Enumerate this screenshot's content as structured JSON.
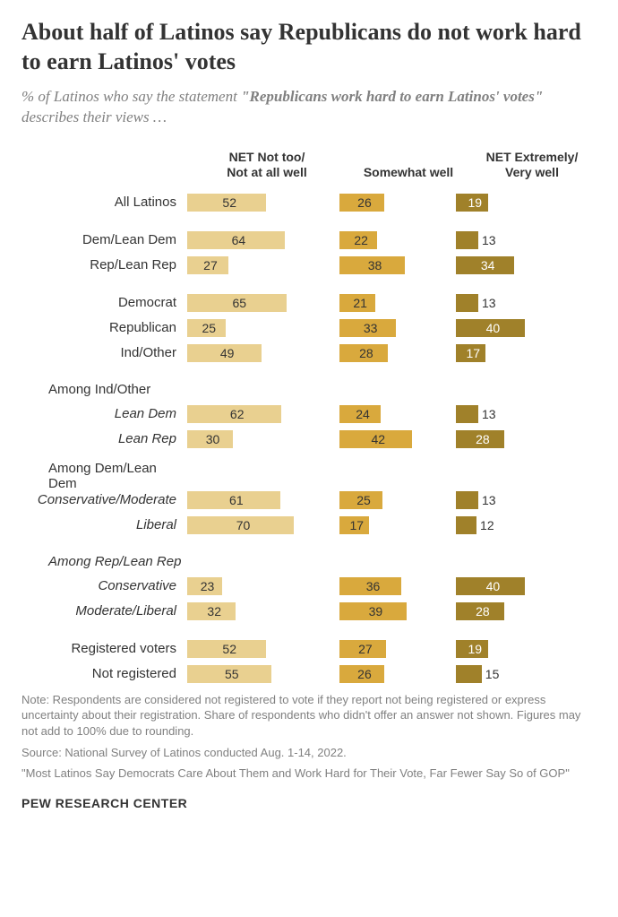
{
  "title": "About half of Latinos say Republicans do not work hard to earn Latinos' votes",
  "subtitle_pre": "% of Latinos who say the statement ",
  "subtitle_bold": "\"Republicans work hard to earn Latinos' votes\"",
  "subtitle_post": " describes their views …",
  "columns": {
    "c1": "NET Not too/\nNot at all well",
    "c2": "Somewhat well",
    "c3": "NET Extremely/\nVery well"
  },
  "colors": {
    "c1": "#e9d090",
    "c2": "#d9a93d",
    "c3": "#a0812a",
    "bg": "#ffffff",
    "text": "#333333",
    "muted": "#808080"
  },
  "scale": {
    "c1_max": 80,
    "c2_max": 50,
    "c3_max": 50
  },
  "groups": [
    {
      "rows": [
        {
          "label": "All Latinos",
          "v": [
            52,
            26,
            19
          ]
        }
      ]
    },
    {
      "rows": [
        {
          "label": "Dem/Lean Dem",
          "v": [
            64,
            22,
            13
          ]
        },
        {
          "label": "Rep/Lean Rep",
          "v": [
            27,
            38,
            34
          ]
        }
      ]
    },
    {
      "rows": [
        {
          "label": "Democrat",
          "v": [
            65,
            21,
            13
          ]
        },
        {
          "label": "Republican",
          "v": [
            25,
            33,
            40
          ]
        },
        {
          "label": "Ind/Other",
          "v": [
            49,
            28,
            17
          ]
        }
      ]
    },
    {
      "header": "Among Ind/Other",
      "rows": [
        {
          "label": "Lean Dem",
          "italic": true,
          "v": [
            62,
            24,
            13
          ]
        },
        {
          "label": "Lean Rep",
          "italic": true,
          "v": [
            30,
            42,
            28
          ]
        }
      ]
    },
    {
      "header": "Among Dem/Lean Dem",
      "rows": [
        {
          "label": "Conservative/Moderate",
          "italic": true,
          "v": [
            61,
            25,
            13
          ]
        },
        {
          "label": "Liberal",
          "italic": true,
          "v": [
            70,
            17,
            12
          ]
        }
      ]
    },
    {
      "header": "Among Rep/Lean Rep",
      "header_italic": true,
      "rows": [
        {
          "label": "Conservative",
          "italic": true,
          "v": [
            23,
            36,
            40
          ]
        },
        {
          "label": "Moderate/Liberal",
          "italic": true,
          "v": [
            32,
            39,
            28
          ]
        }
      ]
    },
    {
      "rows": [
        {
          "label": "Registered voters",
          "v": [
            52,
            27,
            19
          ]
        },
        {
          "label": "Not registered",
          "v": [
            55,
            26,
            15
          ]
        }
      ]
    }
  ],
  "note": "Note: Respondents are considered not registered to vote if they report not being registered or express uncertainty about their registration. Share of respondents who didn't offer an answer not shown. Figures may not add to 100% due to rounding.",
  "source_line": "Source: National Survey of Latinos conducted Aug. 1-14, 2022.",
  "citation": "\"Most Latinos Say Democrats Care About Them and Work Hard for Their Vote, Far Fewer Say So of GOP\"",
  "org": "PEW RESEARCH CENTER"
}
